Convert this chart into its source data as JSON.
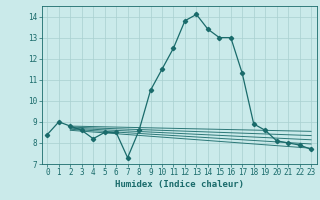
{
  "title": "",
  "xlabel": "Humidex (Indice chaleur)",
  "xlim": [
    -0.5,
    23.5
  ],
  "ylim": [
    7,
    14.5
  ],
  "yticks": [
    7,
    8,
    9,
    10,
    11,
    12,
    13,
    14
  ],
  "xticks": [
    0,
    1,
    2,
    3,
    4,
    5,
    6,
    7,
    8,
    9,
    10,
    11,
    12,
    13,
    14,
    15,
    16,
    17,
    18,
    19,
    20,
    21,
    22,
    23
  ],
  "bg_color": "#caeaea",
  "grid_color": "#a8d0d0",
  "line_color": "#1a6b6b",
  "series": [
    [
      0,
      8.4
    ],
    [
      1,
      9.0
    ],
    [
      2,
      8.8
    ],
    [
      3,
      8.6
    ],
    [
      4,
      8.2
    ],
    [
      5,
      8.5
    ],
    [
      6,
      8.5
    ],
    [
      7,
      7.3
    ],
    [
      8,
      8.6
    ],
    [
      9,
      10.5
    ],
    [
      10,
      11.5
    ],
    [
      11,
      12.5
    ],
    [
      12,
      13.8
    ],
    [
      13,
      14.1
    ],
    [
      14,
      13.4
    ],
    [
      15,
      13.0
    ],
    [
      16,
      13.0
    ],
    [
      17,
      11.3
    ],
    [
      18,
      8.9
    ],
    [
      19,
      8.6
    ],
    [
      20,
      8.1
    ],
    [
      21,
      8.0
    ],
    [
      22,
      7.9
    ],
    [
      23,
      7.7
    ]
  ],
  "extra_lines": [
    [
      [
        2,
        8.8
      ],
      [
        23,
        8.55
      ]
    ],
    [
      [
        2,
        8.75
      ],
      [
        23,
        8.35
      ]
    ],
    [
      [
        2,
        8.7
      ],
      [
        23,
        8.15
      ]
    ],
    [
      [
        2,
        8.65
      ],
      [
        23,
        7.95
      ]
    ],
    [
      [
        2,
        8.6
      ],
      [
        23,
        7.75
      ]
    ]
  ],
  "font_size_ticks": 5.5,
  "font_size_xlabel": 6.5
}
